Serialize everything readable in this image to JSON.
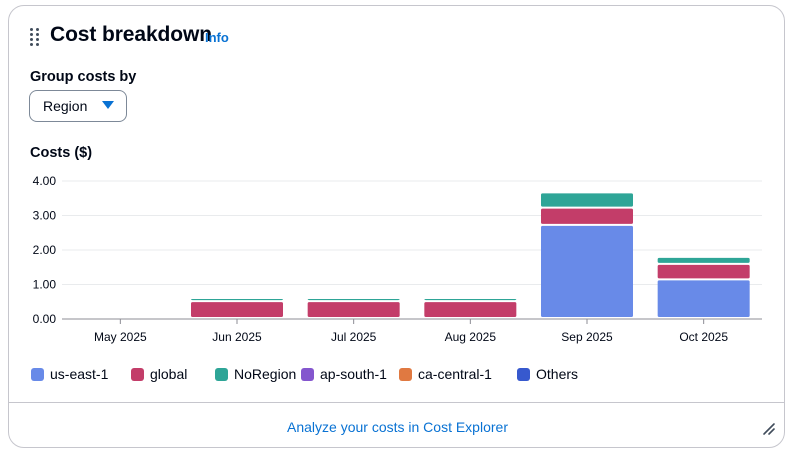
{
  "header": {
    "title": "Cost breakdown",
    "info_label": "Info"
  },
  "controls": {
    "group_label": "Group costs by",
    "group_value": "Region"
  },
  "chart_data": {
    "type": "bar",
    "stacked": true,
    "ylabel": "Costs ($)",
    "ylim": [
      0,
      4
    ],
    "yticks": [
      "0.00",
      "1.00",
      "2.00",
      "3.00",
      "4.00"
    ],
    "grid": true,
    "legend_position": "bottom",
    "categories": [
      "May 2025",
      "Jun 2025",
      "Jul 2025",
      "Aug 2025",
      "Sep 2025",
      "Oct 2025"
    ],
    "series": [
      {
        "name": "us-east-1",
        "color": "#688ae8",
        "values": [
          0,
          0,
          0,
          0,
          2.7,
          1.12
        ]
      },
      {
        "name": "global",
        "color": "#c33d69",
        "values": [
          0,
          0.49,
          0.49,
          0.49,
          0.5,
          0.45
        ]
      },
      {
        "name": "NoRegion",
        "color": "#2ea597",
        "values": [
          0,
          0.09,
          0.09,
          0.09,
          0.44,
          0.2
        ]
      },
      {
        "name": "ap-south-1",
        "color": "#8456ce",
        "values": [
          0,
          0,
          0,
          0,
          0,
          0
        ]
      },
      {
        "name": "ca-central-1",
        "color": "#e07941",
        "values": [
          0,
          0,
          0,
          0,
          0,
          0
        ]
      },
      {
        "name": "Others",
        "color": "#3759ce",
        "values": [
          0,
          0,
          0,
          0,
          0,
          0
        ]
      }
    ]
  },
  "footer": {
    "link_label": "Analyze your costs in Cost Explorer"
  }
}
